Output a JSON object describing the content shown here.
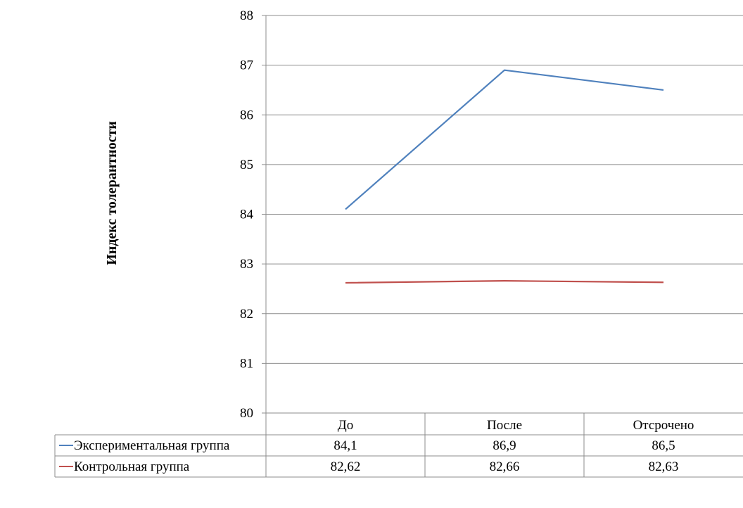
{
  "chart_data": {
    "type": "line",
    "title": "",
    "xlabel": "",
    "ylabel": "Индекс толерантности",
    "categories": [
      "До",
      "После",
      "Отсрочено"
    ],
    "ylim": [
      80,
      88
    ],
    "yticks": [
      "80",
      "81",
      "82",
      "83",
      "84",
      "85",
      "86",
      "87",
      "88"
    ],
    "grid": "horizontal",
    "legend": "data-table-below",
    "series": [
      {
        "name": "Экспериментальная группа",
        "values": [
          84.1,
          86.9,
          86.5
        ],
        "labels": [
          "84,1",
          "86,9",
          "86,5"
        ],
        "color": "#4f81bd"
      },
      {
        "name": "Контрольная группа",
        "values": [
          82.62,
          82.66,
          82.63
        ],
        "labels": [
          "82,62",
          "82,66",
          "82,63"
        ],
        "color": "#c0504d"
      }
    ]
  }
}
